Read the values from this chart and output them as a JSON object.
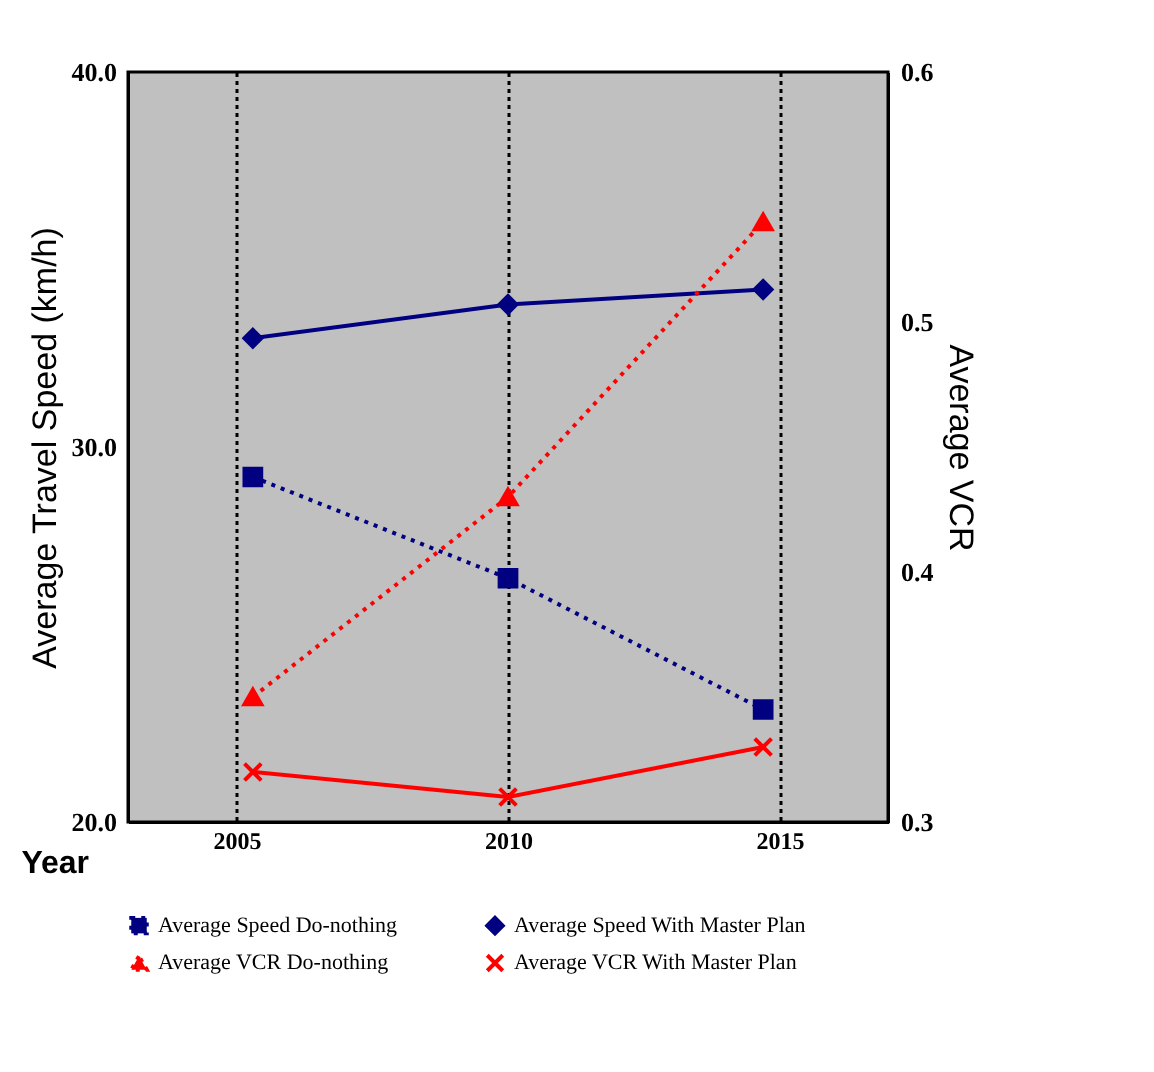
{
  "chart_data": {
    "type": "line",
    "xlabel": "Year",
    "ylabel": "Average Travel Speed (km/h)",
    "y2label": "Average VCR",
    "xlim": [
      2003,
      2017
    ],
    "xticks": [
      2005,
      2010,
      2015
    ],
    "ylim": [
      20,
      40
    ],
    "yticks": [
      {
        "value": 20,
        "label": "20.0"
      },
      {
        "value": 30,
        "label": "30.0"
      },
      {
        "value": 40,
        "label": "40.0"
      }
    ],
    "y2lim": [
      0.3,
      0.6
    ],
    "y2ticks": [
      0.3,
      0.4,
      0.5,
      0.6
    ],
    "grid": "x",
    "legend": "bottom",
    "series": [
      {
        "name": "Average Speed Do-nothing",
        "color": "#000080",
        "x": [
          2005.3,
          2010,
          2014.7
        ],
        "values": [
          29.2,
          26.5,
          23.0
        ],
        "marker": "square",
        "line_style": "dotted"
      },
      {
        "name": "Average Speed With Master Plan",
        "color": "#000080",
        "x": [
          2005.3,
          2010,
          2014.7
        ],
        "values": [
          32.9,
          33.8,
          34.2
        ],
        "marker": "diamond",
        "line_style": "solid"
      },
      {
        "name": "Average VCR Do-nothing",
        "color": "#ff0000",
        "x": [
          2005.3,
          2010,
          2014.7
        ],
        "values": [
          0.35,
          0.43,
          0.54
        ],
        "marker": "triangle",
        "line_style": "dotted",
        "axis": "y2"
      },
      {
        "name": "Average VCR With Master Plan",
        "color": "#ff0000",
        "x": [
          2005.3,
          2010,
          2014.7
        ],
        "values": [
          0.32,
          0.31,
          0.33
        ],
        "marker": "cross",
        "line_style": "solid",
        "axis": "y2"
      }
    ]
  }
}
